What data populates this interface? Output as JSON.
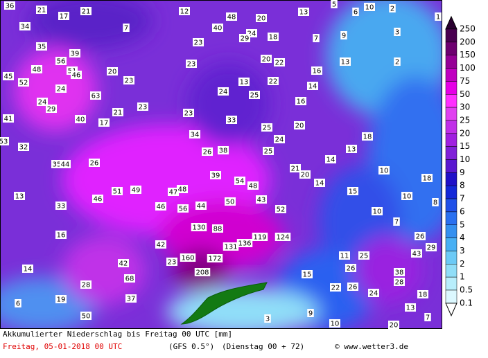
{
  "map": {
    "stations": [
      36,
      21,
      17,
      21,
      12,
      13,
      5,
      6,
      10,
      2,
      1,
      34,
      7,
      40,
      48,
      20,
      24,
      29,
      18,
      7,
      9,
      3,
      35,
      39,
      56,
      23,
      20,
      22,
      13,
      2,
      45,
      48,
      51,
      46,
      20,
      23,
      23,
      16,
      52,
      24,
      63,
      24,
      13,
      22,
      14,
      25,
      16,
      24,
      29,
      23,
      21,
      23,
      33,
      25,
      20,
      41,
      40,
      17,
      34,
      24,
      18,
      53,
      32,
      26,
      38,
      25,
      13,
      35,
      44,
      26,
      21,
      20,
      14,
      10,
      39,
      54,
      48,
      14,
      15,
      18,
      13,
      51,
      49,
      47,
      48,
      43,
      10,
      8,
      33,
      46,
      46,
      56,
      44,
      50,
      52,
      10,
      16,
      130,
      88,
      7,
      119,
      124,
      26,
      136,
      131,
      29,
      42,
      14,
      42,
      23,
      160,
      172,
      11,
      25,
      43,
      68,
      208,
      15,
      26,
      38,
      28,
      22,
      26,
      28,
      6,
      19,
      37,
      24,
      18,
      13,
      50,
      3,
      9,
      7,
      10,
      20
    ],
    "legend": {
      "labels": [
        250,
        200,
        150,
        100,
        75,
        50,
        30,
        25,
        20,
        15,
        10,
        9,
        8,
        7,
        6,
        5,
        4,
        3,
        2,
        1,
        0.5,
        0.1
      ],
      "colors": [
        "#2a0030",
        "#4a0050",
        "#6e0070",
        "#960096",
        "#c000c0",
        "#e600e6",
        "#ff30ff",
        "#e040f0",
        "#c030e8",
        "#a020e0",
        "#8020d8",
        "#5a18d0",
        "#2010c8",
        "#1428d8",
        "#2050e8",
        "#2a70f0",
        "#3590f0",
        "#48b0f4",
        "#6ccaf6",
        "#90def8",
        "#b8eefc",
        "#dcf8ff",
        "#ffffff"
      ]
    },
    "footer": {
      "title": "Akkumulierter Niederschlag bis Freitag 00 UTC [mm]",
      "date": "Freitag, 05-01-2018  00 UTC",
      "model": "(GFS 0.5°)",
      "run": "(Dienstag 00 + 72)",
      "credit": "© www.wetter3.de"
    }
  }
}
